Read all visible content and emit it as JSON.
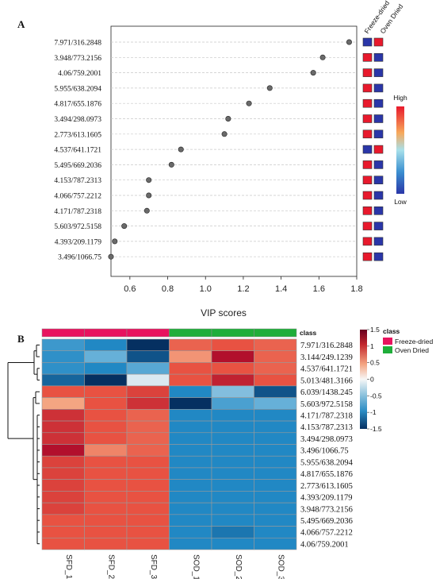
{
  "panel_a_letter": "A",
  "panel_b_letter": "B",
  "chart_data": [
    {
      "type": "scatter",
      "subtype": "vip-dot-plot",
      "xlabel": "VIP scores",
      "xlim": [
        0.5,
        1.8
      ],
      "xticks": [
        0.6,
        0.8,
        1.0,
        1.2,
        1.4,
        1.6,
        1.8
      ],
      "xtick_labels": [
        "0.6",
        "0.8",
        "1.0",
        "1.2",
        "1.4",
        "1.6",
        "1.8"
      ],
      "grid": "horizontal dashed",
      "features": [
        "7.971/316.2848",
        "3.948/773.2156",
        "4.06/759.2001",
        "5.955/638.2094",
        "4.817/655.1876",
        "3.494/298.0973",
        "2.773/613.1605",
        "4.537/641.1721",
        "5.495/669.2036",
        "4.153/787.2313",
        "4.066/757.2212",
        "4.171/787.2318",
        "5.603/972.5158",
        "4.393/209.1179",
        "3.496/1066.75"
      ],
      "values": [
        1.76,
        1.62,
        1.57,
        1.34,
        1.23,
        1.12,
        1.1,
        0.87,
        0.82,
        0.7,
        0.7,
        0.69,
        0.57,
        0.52,
        0.5
      ],
      "groups": [
        "Freeze-dried",
        "Oven Dried"
      ],
      "group_levels": [
        [
          "low",
          "high"
        ],
        [
          "high",
          "low"
        ],
        [
          "high",
          "low"
        ],
        [
          "high",
          "low"
        ],
        [
          "high",
          "low"
        ],
        [
          "high",
          "low"
        ],
        [
          "high",
          "low"
        ],
        [
          "low",
          "high"
        ],
        [
          "high",
          "low"
        ],
        [
          "high",
          "low"
        ],
        [
          "high",
          "low"
        ],
        [
          "high",
          "low"
        ],
        [
          "high",
          "low"
        ],
        [
          "high",
          "low"
        ],
        [
          "high",
          "low"
        ]
      ],
      "legend": {
        "high_label": "High",
        "low_label": "Low"
      }
    },
    {
      "type": "heatmap",
      "columns": [
        "SFD_1",
        "SFD_2",
        "SFD_3",
        "SOD_1",
        "SOD_2",
        "SOD_3"
      ],
      "column_classes": [
        "Freeze-dried",
        "Freeze-dried",
        "Freeze-dried",
        "Oven Dried",
        "Oven Dried",
        "Oven Dried"
      ],
      "rows": [
        "7.971/316.2848",
        "3.144/249.1239",
        "4.537/641.1721",
        "5.013/481.3166",
        "6.039/1438.245",
        "5.603/972.5158",
        "4.171/787.2318",
        "4.153/787.2313",
        "3.494/298.0973",
        "3.496/1066.75",
        "5.955/638.2094",
        "4.817/655.1876",
        "2.773/613.1605",
        "4.393/209.1179",
        "3.948/773.2156",
        "5.495/669.2036",
        "4.066/757.2212",
        "4.06/759.2001"
      ],
      "values": [
        [
          -0.8,
          -1.0,
          -1.5,
          0.9,
          1.0,
          0.9
        ],
        [
          -0.9,
          -0.5,
          -1.3,
          0.6,
          1.4,
          0.9
        ],
        [
          -0.9,
          -1.0,
          -0.6,
          1.0,
          1.0,
          0.9
        ],
        [
          -1.2,
          -1.5,
          -0.1,
          1.0,
          1.3,
          1.0
        ],
        [
          1.0,
          1.0,
          1.1,
          -1.0,
          -0.4,
          -1.3
        ],
        [
          0.5,
          1.0,
          1.2,
          -1.5,
          -0.7,
          -0.5
        ],
        [
          1.2,
          1.0,
          0.9,
          -1.0,
          -1.0,
          -1.0
        ],
        [
          1.2,
          1.0,
          0.9,
          -1.0,
          -1.0,
          -1.0
        ],
        [
          1.2,
          1.0,
          0.9,
          -1.0,
          -1.0,
          -1.0
        ],
        [
          1.4,
          0.7,
          0.9,
          -1.0,
          -1.0,
          -1.0
        ],
        [
          1.1,
          1.0,
          1.0,
          -1.0,
          -1.0,
          -1.0
        ],
        [
          1.1,
          1.0,
          1.0,
          -1.0,
          -1.0,
          -1.0
        ],
        [
          1.1,
          1.0,
          1.0,
          -1.0,
          -1.0,
          -1.0
        ],
        [
          1.1,
          1.0,
          1.0,
          -1.0,
          -1.0,
          -1.0
        ],
        [
          1.1,
          1.0,
          1.0,
          -1.0,
          -1.0,
          -1.0
        ],
        [
          1.0,
          1.0,
          1.0,
          -1.0,
          -1.0,
          -1.0
        ],
        [
          1.0,
          1.0,
          1.0,
          -1.0,
          -1.1,
          -1.0
        ],
        [
          1.0,
          1.0,
          1.0,
          -1.0,
          -1.0,
          -1.0
        ]
      ],
      "class_header": "class",
      "legend_title": "class",
      "legend_entries": [
        {
          "name": "Freeze-dried",
          "color": "#e8135e"
        },
        {
          "name": "Oven Dried",
          "color": "#1fae3a"
        }
      ],
      "color_scale": {
        "range": [
          -1.5,
          1.5
        ],
        "ticks": [
          1.5,
          1,
          0.5,
          0,
          -0.5,
          -1,
          -1.5
        ],
        "tick_labels": [
          "1.5",
          "1",
          "0.5",
          "0",
          "-0.5",
          "-1",
          "-1.5"
        ],
        "colors": [
          "#053061",
          "#2166ac",
          "#4393c3",
          "#92c5de",
          "#f7f7f7",
          "#fddbc7",
          "#f4a582",
          "#d6604d",
          "#b2182b",
          "#67001f"
        ]
      }
    }
  ],
  "colors": {
    "high": "#e8192c",
    "low": "#2a36a8",
    "dot": "#6a6a6a"
  }
}
